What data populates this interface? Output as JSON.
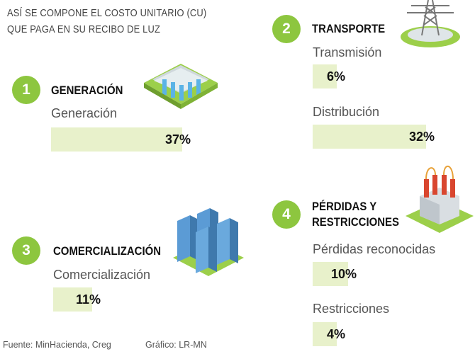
{
  "title": {
    "line1": "ASÍ SE COMPONE EL COSTO UNITARIO (CU)",
    "line2": "QUE PAGA EN SU RECIBO DE LUZ"
  },
  "colors": {
    "accent": "#8dc63f",
    "bar": "#e8f1cb"
  },
  "sections": [
    {
      "number": "1",
      "title": "GENERACIÓN",
      "icon": "hydro-dam-icon"
    },
    {
      "number": "2",
      "title": "TRANSPORTE",
      "icon": "transmission-tower-icon"
    },
    {
      "number": "3",
      "title": "COMERCIALIZACIÓN",
      "icon": "server-racks-icon"
    },
    {
      "number": "4",
      "title_line1": "PÉRDIDAS Y",
      "title_line2": "RESTRICCIONES",
      "icon": "transformer-icon"
    }
  ],
  "chart_data": {
    "type": "bar",
    "categories": [
      "Generación",
      "Transmisión",
      "Distribución",
      "Comercialización",
      "Pérdidas reconocidas",
      "Restricciones"
    ],
    "values": [
      37,
      6,
      32,
      11,
      10,
      4
    ],
    "labels": [
      "37%",
      "6%",
      "32%",
      "11%",
      "10%",
      "4%"
    ],
    "units": "%",
    "xlim": [
      0,
      40
    ]
  },
  "footer": {
    "source": "Fuente: MinHacienda, Creg",
    "credit": "Gráfico: LR-MN"
  }
}
